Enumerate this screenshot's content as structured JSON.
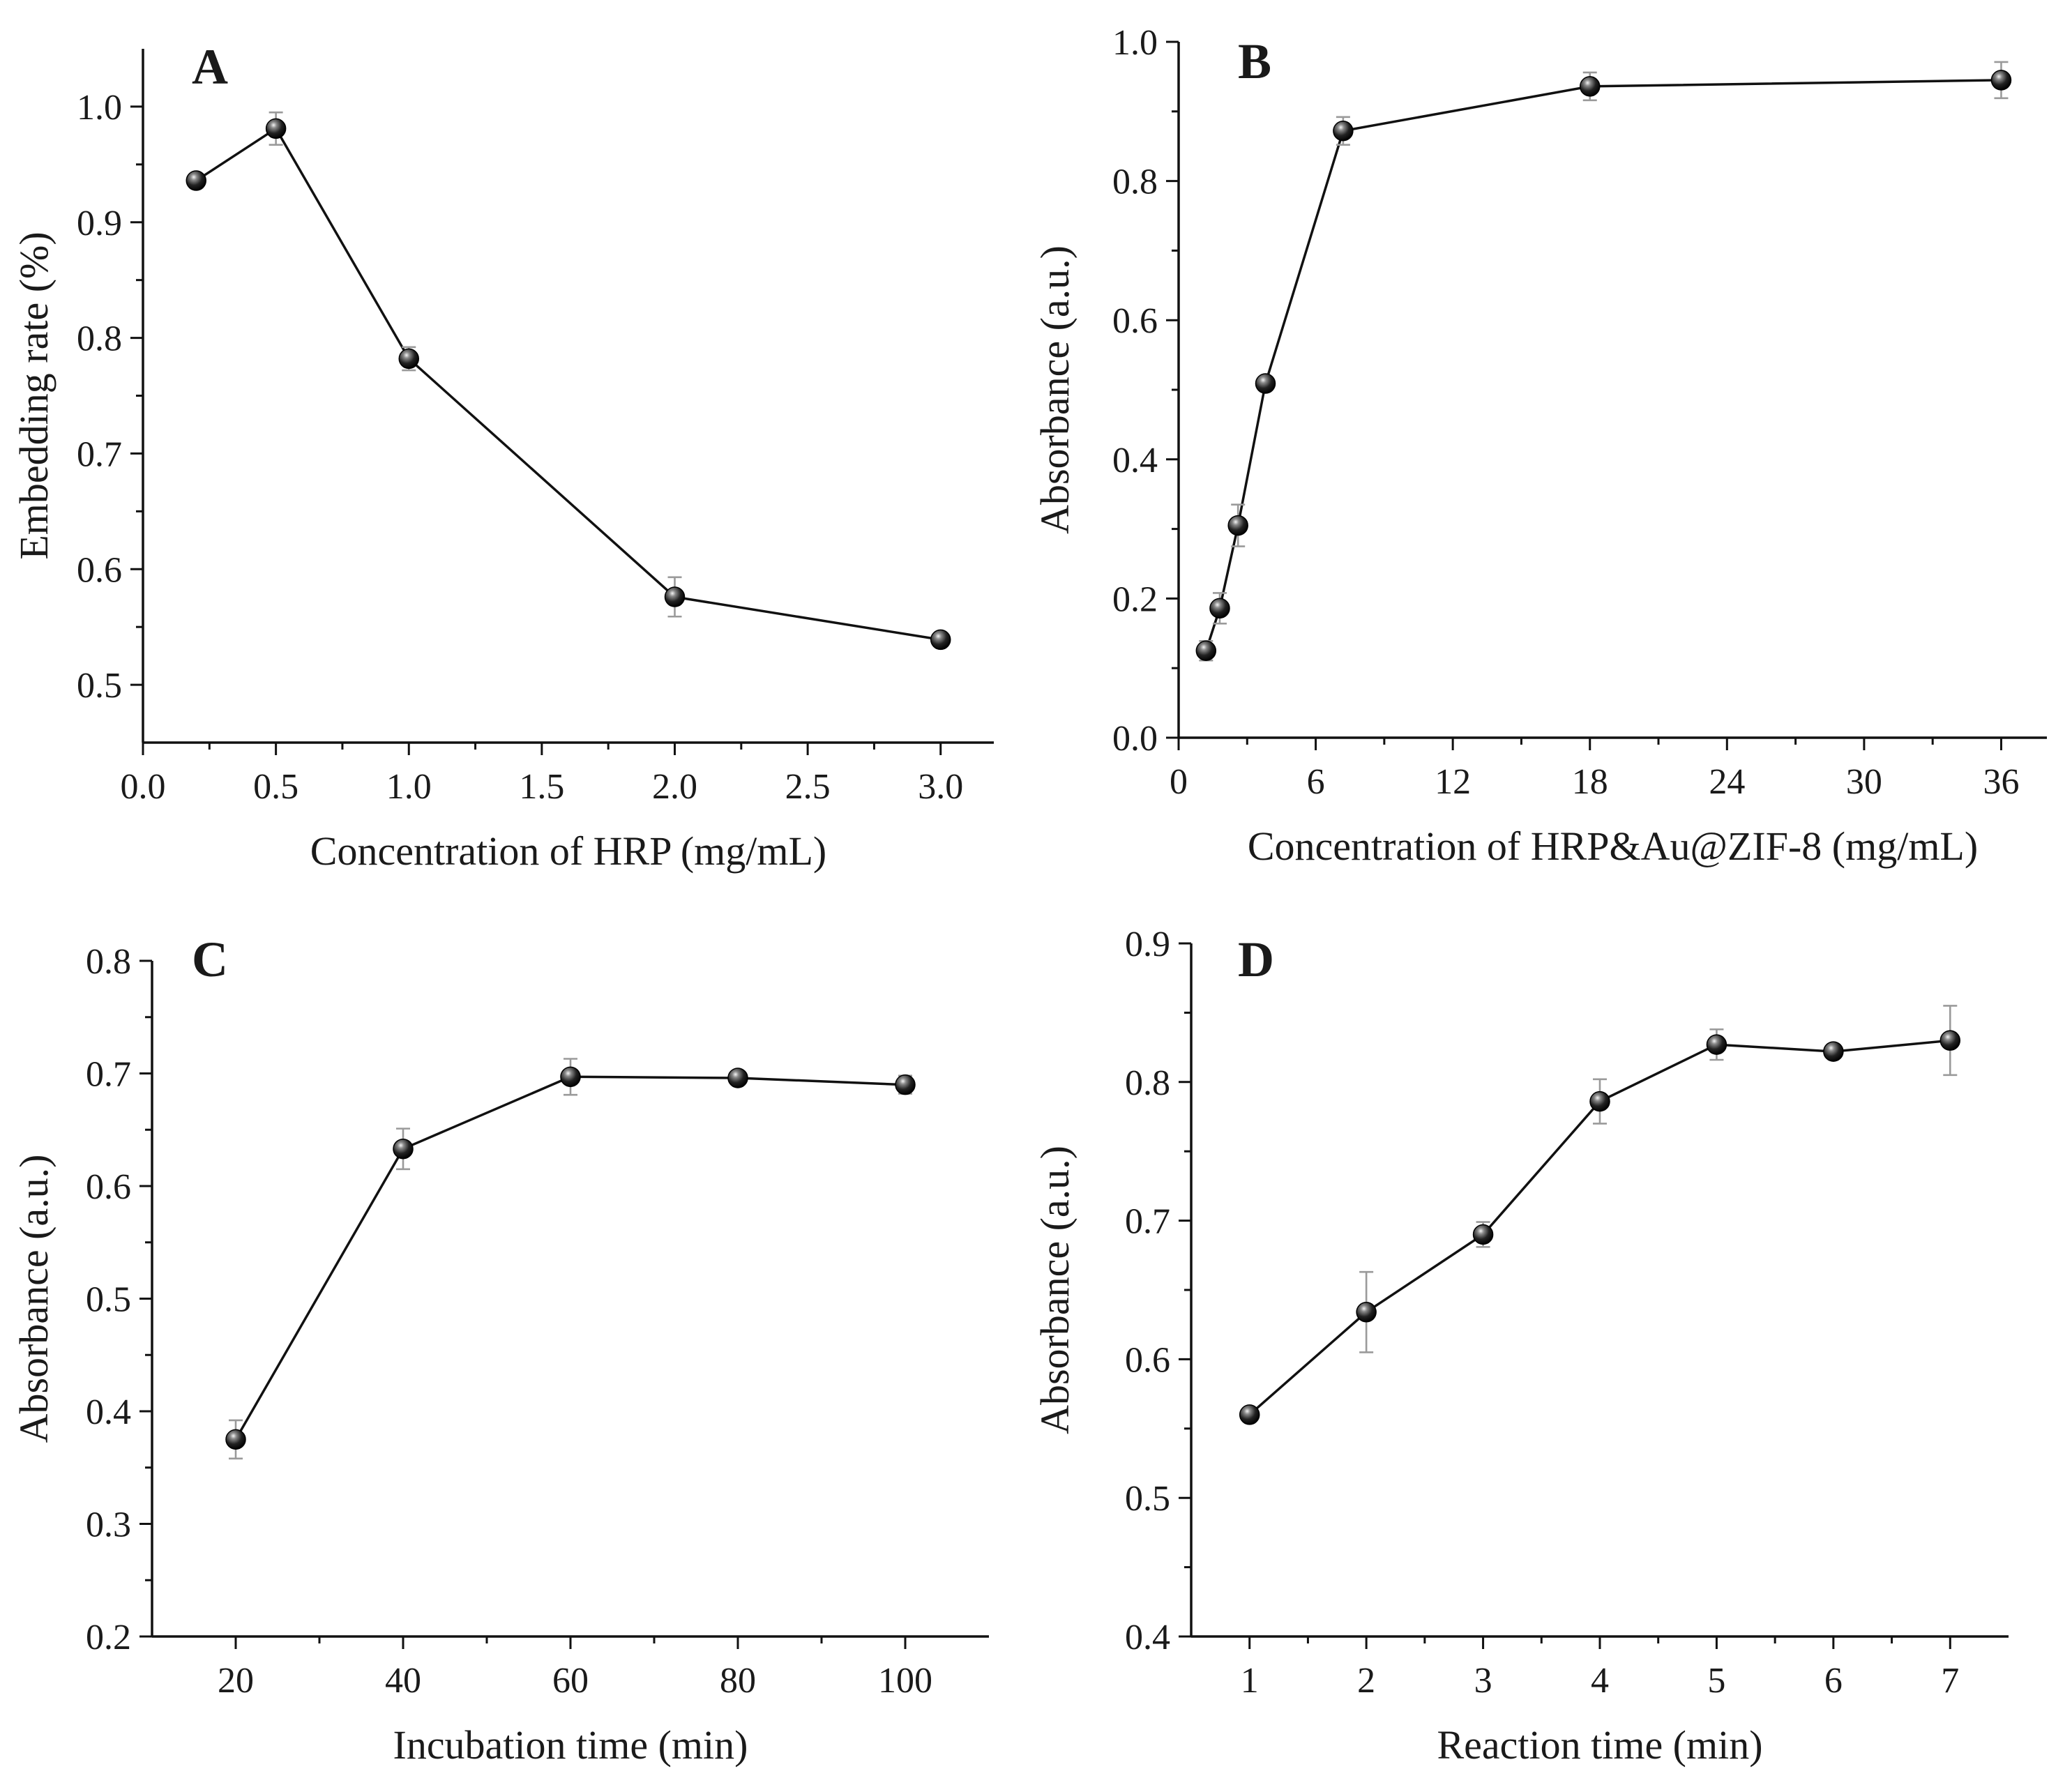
{
  "chart_data": [
    {
      "type": "line",
      "panel": "A",
      "title": "",
      "xlabel": "Concentration of HRP (mg/mL)",
      "ylabel": "Embedding rate (%)",
      "xlim": [
        0,
        3.2
      ],
      "ylim": [
        0.45,
        1.05
      ],
      "xticks": [
        0.0,
        0.5,
        1.0,
        1.5,
        2.0,
        2.5,
        3.0
      ],
      "xtick_labels": [
        "0.0",
        "0.5",
        "1.0",
        "1.5",
        "2.0",
        "2.5",
        "3.0"
      ],
      "yticks": [
        0.5,
        0.6,
        0.7,
        0.8,
        0.9,
        1.0
      ],
      "ytick_labels": [
        "0.5",
        "0.6",
        "0.7",
        "0.8",
        "0.9",
        "1.0"
      ],
      "x": [
        0.2,
        0.5,
        1.0,
        2.0,
        3.0
      ],
      "values": [
        0.936,
        0.981,
        0.782,
        0.576,
        0.539
      ],
      "errors": [
        0.006,
        0.014,
        0.01,
        0.017,
        0.004
      ]
    },
    {
      "type": "line",
      "panel": "B",
      "title": "",
      "xlabel": "Concentration of HRP&Au@ZIF-8 (mg/mL)",
      "ylabel": "Absorbance (a.u.)",
      "xlim": [
        0,
        38
      ],
      "ylim": [
        0.0,
        1.0
      ],
      "xticks": [
        0,
        6,
        12,
        18,
        24,
        30,
        36
      ],
      "xtick_labels": [
        "0",
        "6",
        "12",
        "18",
        "24",
        "30",
        "36"
      ],
      "yticks": [
        0.0,
        0.2,
        0.4,
        0.6,
        0.8,
        1.0
      ],
      "ytick_labels": [
        "0.0",
        "0.2",
        "0.4",
        "0.6",
        "0.8",
        "1.0"
      ],
      "x": [
        1.2,
        1.8,
        2.6,
        3.8,
        7.2,
        18.0,
        36.0
      ],
      "values": [
        0.125,
        0.186,
        0.305,
        0.509,
        0.872,
        0.936,
        0.945
      ],
      "errors": [
        0.014,
        0.022,
        0.03,
        0.006,
        0.02,
        0.02,
        0.026
      ]
    },
    {
      "type": "line",
      "panel": "C",
      "title": "",
      "xlabel": "Incubation time (min)",
      "ylabel": "Absorbance (a.u.)",
      "xlim": [
        10,
        110
      ],
      "ylim": [
        0.2,
        0.8
      ],
      "xticks": [
        20,
        40,
        60,
        80,
        100
      ],
      "xtick_labels": [
        "20",
        "40",
        "60",
        "80",
        "100"
      ],
      "yticks": [
        0.2,
        0.3,
        0.4,
        0.5,
        0.6,
        0.7,
        0.8
      ],
      "ytick_labels": [
        "0.2",
        "0.3",
        "0.4",
        "0.5",
        "0.6",
        "0.7",
        "0.8"
      ],
      "x": [
        20,
        40,
        60,
        80,
        100
      ],
      "values": [
        0.375,
        0.633,
        0.697,
        0.696,
        0.69
      ],
      "errors": [
        0.017,
        0.018,
        0.016,
        0.004,
        0.008
      ]
    },
    {
      "type": "line",
      "panel": "D",
      "title": "",
      "xlabel": "Reaction time (min)",
      "ylabel": "Absorbance (a.u.)",
      "xlim": [
        0.5,
        7.5
      ],
      "ylim": [
        0.4,
        0.9
      ],
      "xticks": [
        1,
        2,
        3,
        4,
        5,
        6,
        7
      ],
      "xtick_labels": [
        "1",
        "2",
        "3",
        "4",
        "5",
        "6",
        "7"
      ],
      "yticks": [
        0.4,
        0.5,
        0.6,
        0.7,
        0.8,
        0.9
      ],
      "ytick_labels": [
        "0.4",
        "0.5",
        "0.6",
        "0.7",
        "0.8",
        "0.9"
      ],
      "x": [
        1,
        2,
        3,
        4,
        5,
        6,
        7
      ],
      "values": [
        0.56,
        0.634,
        0.69,
        0.786,
        0.827,
        0.822,
        0.83
      ],
      "errors": [
        0.003,
        0.029,
        0.009,
        0.016,
        0.011,
        0.004,
        0.025
      ]
    }
  ]
}
